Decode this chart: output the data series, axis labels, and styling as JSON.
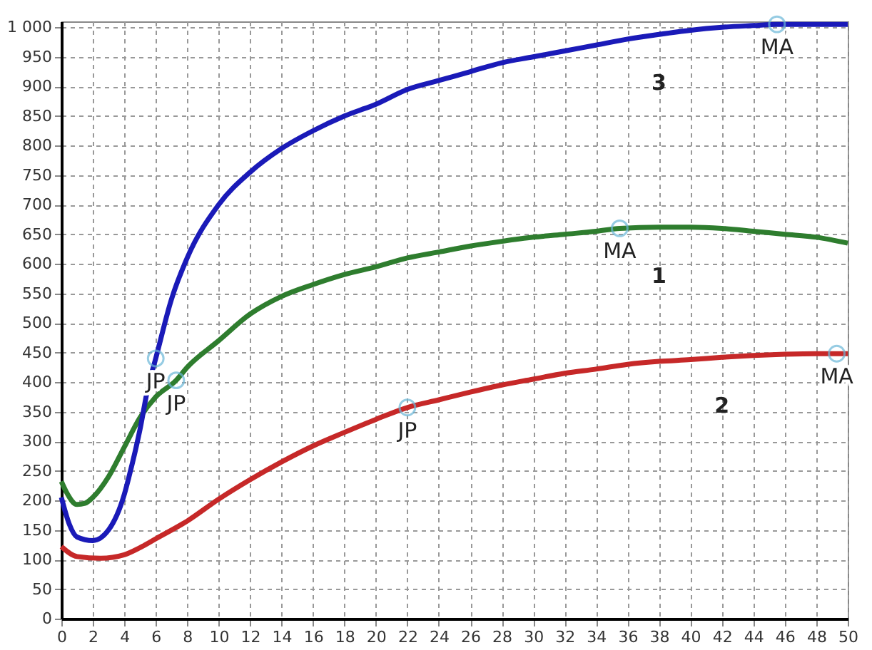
{
  "chart_data": {
    "type": "line",
    "series": [
      {
        "name": "1",
        "color": "#2e7d2e",
        "x": [
          0,
          0.3,
          1,
          1.5,
          2,
          3,
          4,
          5,
          6,
          7.3,
          8,
          10,
          12,
          14,
          16,
          18,
          20,
          22,
          24,
          26,
          28,
          30,
          32,
          34,
          35.5,
          38,
          40,
          42,
          44,
          46,
          48,
          50
        ],
        "values": [
          232,
          215,
          193,
          195,
          205,
          240,
          290,
          340,
          375,
          403,
          425,
          470,
          515,
          545,
          565,
          582,
          595,
          610,
          620,
          630,
          638,
          645,
          650,
          655,
          660,
          662,
          662,
          660,
          655,
          650,
          645,
          635
        ]
      },
      {
        "name": "2",
        "color": "#c62828",
        "x": [
          0,
          1,
          2.5,
          4,
          5,
          6,
          8,
          10,
          12,
          14,
          16,
          18,
          20,
          22,
          24,
          26,
          28,
          30,
          32,
          34,
          36,
          38,
          40,
          42,
          44,
          46,
          48,
          49.3,
          50
        ],
        "values": [
          122,
          105,
          102,
          108,
          120,
          135,
          165,
          202,
          235,
          265,
          292,
          315,
          337,
          357,
          370,
          383,
          395,
          405,
          415,
          422,
          430,
          435,
          438,
          442,
          445,
          447,
          448,
          448,
          448
        ]
      },
      {
        "name": "3",
        "color": "#1a1ab8",
        "x": [
          0,
          0.5,
          1,
          2,
          3,
          4,
          4.3,
          5,
          5.5,
          6,
          7,
          8,
          10,
          12,
          14,
          16,
          18,
          20,
          22,
          24,
          26,
          28,
          30,
          32,
          34,
          36,
          38,
          40,
          42,
          44,
          45.5,
          48,
          50
        ],
        "values": [
          205,
          160,
          138,
          132,
          150,
          210,
          240,
          320,
          390,
          440,
          540,
          610,
          700,
          755,
          795,
          825,
          850,
          870,
          895,
          910,
          925,
          940,
          950,
          960,
          970,
          980,
          988,
          995,
          1000,
          1003,
          1005,
          1005,
          1005
        ]
      }
    ],
    "annotations": [
      {
        "text": "JP",
        "x": 6,
        "y": 440
      },
      {
        "text": "JP",
        "x": 7.3,
        "y": 403
      },
      {
        "text": "JP",
        "x": 22,
        "y": 357
      },
      {
        "text": "MA",
        "x": 35.5,
        "y": 660
      },
      {
        "text": "MA",
        "x": 49.3,
        "y": 448
      },
      {
        "text": "MA",
        "x": 45.5,
        "y": 1005
      }
    ],
    "xlim": [
      0,
      50
    ],
    "xticks": [
      0,
      2,
      4,
      6,
      8,
      10,
      12,
      14,
      16,
      18,
      20,
      22,
      24,
      26,
      28,
      30,
      32,
      34,
      36,
      38,
      40,
      42,
      44,
      46,
      48,
      50
    ],
    "ylim": [
      0,
      1010
    ],
    "yticks": [
      0,
      50,
      100,
      150,
      200,
      250,
      300,
      350,
      400,
      450,
      500,
      550,
      600,
      650,
      700,
      750,
      800,
      850,
      900,
      950,
      {
        "value": 1000,
        "label": "1 000"
      }
    ],
    "grid": true,
    "line_style": "solid"
  }
}
